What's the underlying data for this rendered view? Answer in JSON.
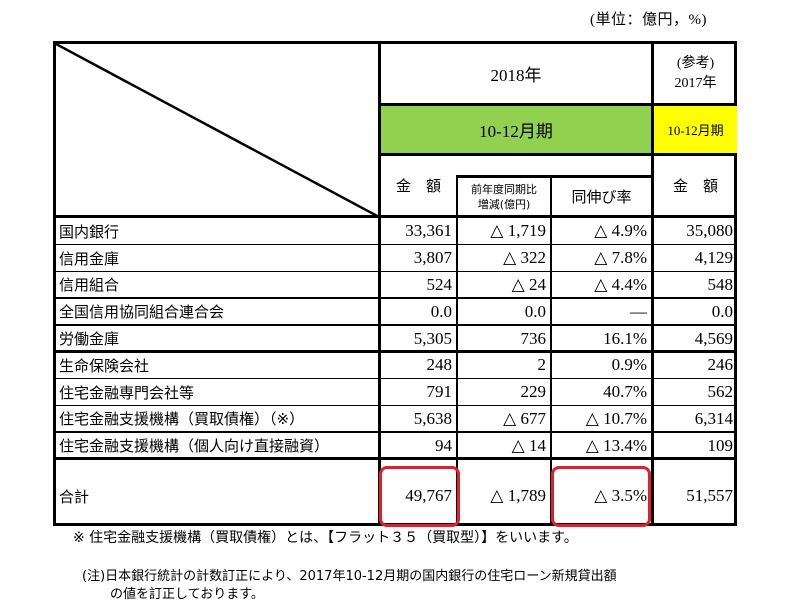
{
  "unit_label": "(単位：億円，%)",
  "header": {
    "year_2018": "2018年",
    "period_2018": "10-12月期",
    "ref_line1": "(参考)",
    "ref_line2": "2017年",
    "period_2017": "10-12月期",
    "col_amount": "金　額",
    "col_change_line1": "前年度同期比",
    "col_change_line2": "増減(億円)",
    "col_growth": "同伸び率",
    "col_amount_2017": "金　額"
  },
  "rows": [
    {
      "label": "国内銀行",
      "amount": "33,361",
      "change": "△ 1,719",
      "growth": "△ 4.9%",
      "amount_2017": "35,080"
    },
    {
      "label": "信用金庫",
      "amount": "3,807",
      "change": "△ 322",
      "growth": "△ 7.8%",
      "amount_2017": "4,129"
    },
    {
      "label": "信用組合",
      "amount": "524",
      "change": "△ 24",
      "growth": "△ 4.4%",
      "amount_2017": "548"
    },
    {
      "label": "全国信用協同組合連合会",
      "amount": "0.0",
      "change": "0.0",
      "growth": "—",
      "amount_2017": "0.0"
    },
    {
      "label": "労働金庫",
      "amount": "5,305",
      "change": "736",
      "growth": "16.1%",
      "amount_2017": "4,569"
    },
    {
      "label": "生命保険会社",
      "amount": "248",
      "change": "2",
      "growth": "0.9%",
      "amount_2017": "246"
    },
    {
      "label": "住宅金融専門会社等",
      "amount": "791",
      "change": "229",
      "growth": "40.7%",
      "amount_2017": "562"
    },
    {
      "label": "住宅金融支援機構（買取債権）（※）",
      "amount": "5,638",
      "change": "△ 677",
      "growth": "△ 10.7%",
      "amount_2017": "6,314"
    },
    {
      "label": "住宅金融支援機構（個人向け直接融資）",
      "amount": "94",
      "change": "△ 14",
      "growth": "△ 13.4%",
      "amount_2017": "109"
    }
  ],
  "total": {
    "label": "合計",
    "amount": "49,767",
    "change": "△ 1,789",
    "growth": "△ 3.5%",
    "amount_2017": "51,557"
  },
  "footnote": "※ 住宅金融支援機構（買取債権）とは、【フラット３５（買取型）】をいいます。",
  "note_line1": "(注)日本銀行統計の計数訂正により、2017年10-12月期の国内銀行の住宅ローン新規貸出額",
  "note_line2": "の値を訂正しております。",
  "colors": {
    "green": "#92d050",
    "yellow": "#ffff00",
    "highlight": "#e0202a"
  }
}
